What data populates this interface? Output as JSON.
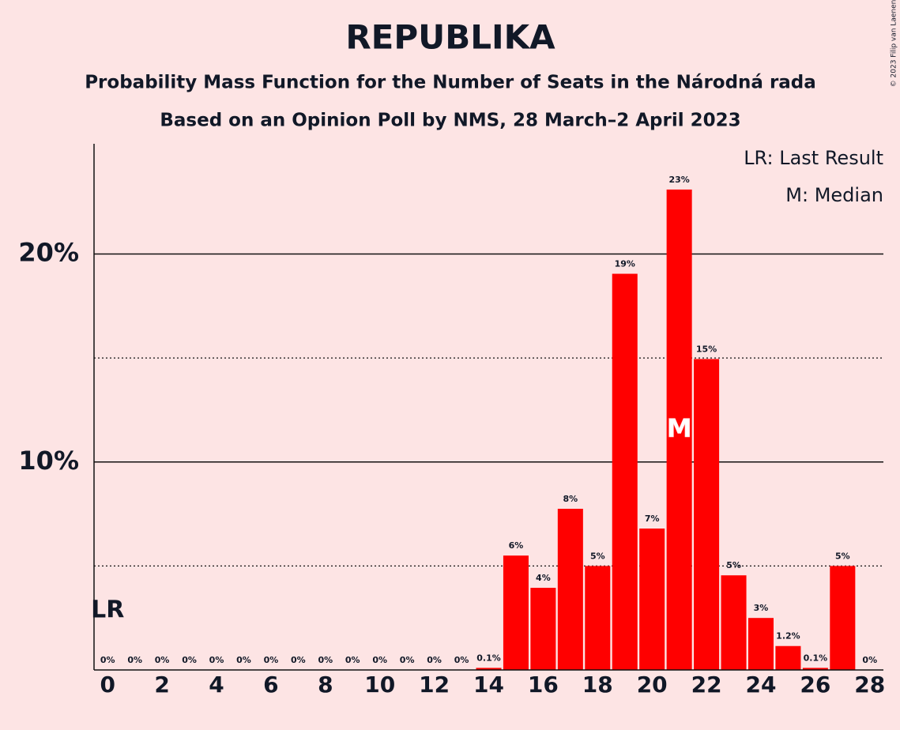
{
  "chart_data": {
    "type": "bar",
    "title": "REPUBLIKA",
    "subtitle": "Probability Mass Function for the Number of Seats in the Národná rada",
    "subtitle2": "Based on an Opinion Poll by NMS, 28 March–2 April 2023",
    "credit": "© 2023 Filip van Laenen",
    "legend": [
      "LR: Last Result",
      "M: Median"
    ],
    "x": [
      0,
      1,
      2,
      3,
      4,
      5,
      6,
      7,
      8,
      9,
      10,
      11,
      12,
      13,
      14,
      15,
      16,
      17,
      18,
      19,
      20,
      21,
      22,
      23,
      24,
      25,
      26,
      27,
      28
    ],
    "values": [
      0,
      0,
      0,
      0,
      0,
      0,
      0,
      0,
      0,
      0,
      0,
      0,
      0,
      0,
      0.1,
      5.5,
      3.95,
      7.75,
      5.0,
      19.05,
      6.8,
      23.1,
      14.95,
      4.55,
      2.5,
      1.15,
      0.1,
      5.0,
      0
    ],
    "value_labels": [
      "0%",
      "0%",
      "0%",
      "0%",
      "0%",
      "0%",
      "0%",
      "0%",
      "0%",
      "0%",
      "0%",
      "0%",
      "0%",
      "0%",
      "0.1%",
      "6%",
      "4%",
      "8%",
      "5%",
      "19%",
      "7%",
      "23%",
      "15%",
      "5%",
      "3%",
      "1.2%",
      "0.1%",
      "5%",
      "0%"
    ],
    "color": "#ff0000",
    "xlim": [
      -0.5,
      28.5
    ],
    "xticks": [
      0,
      2,
      4,
      6,
      8,
      10,
      12,
      14,
      16,
      18,
      20,
      22,
      24,
      26,
      28
    ],
    "ylim": [
      0,
      25.3
    ],
    "yticks": [
      {
        "value": 10,
        "label": "10%"
      },
      {
        "value": 20,
        "label": "20%"
      }
    ],
    "minor_yticks": [
      5,
      15
    ],
    "grid": true,
    "last_result": {
      "x": 0,
      "label": "LR"
    },
    "median": {
      "x": 21,
      "label": "M"
    }
  }
}
